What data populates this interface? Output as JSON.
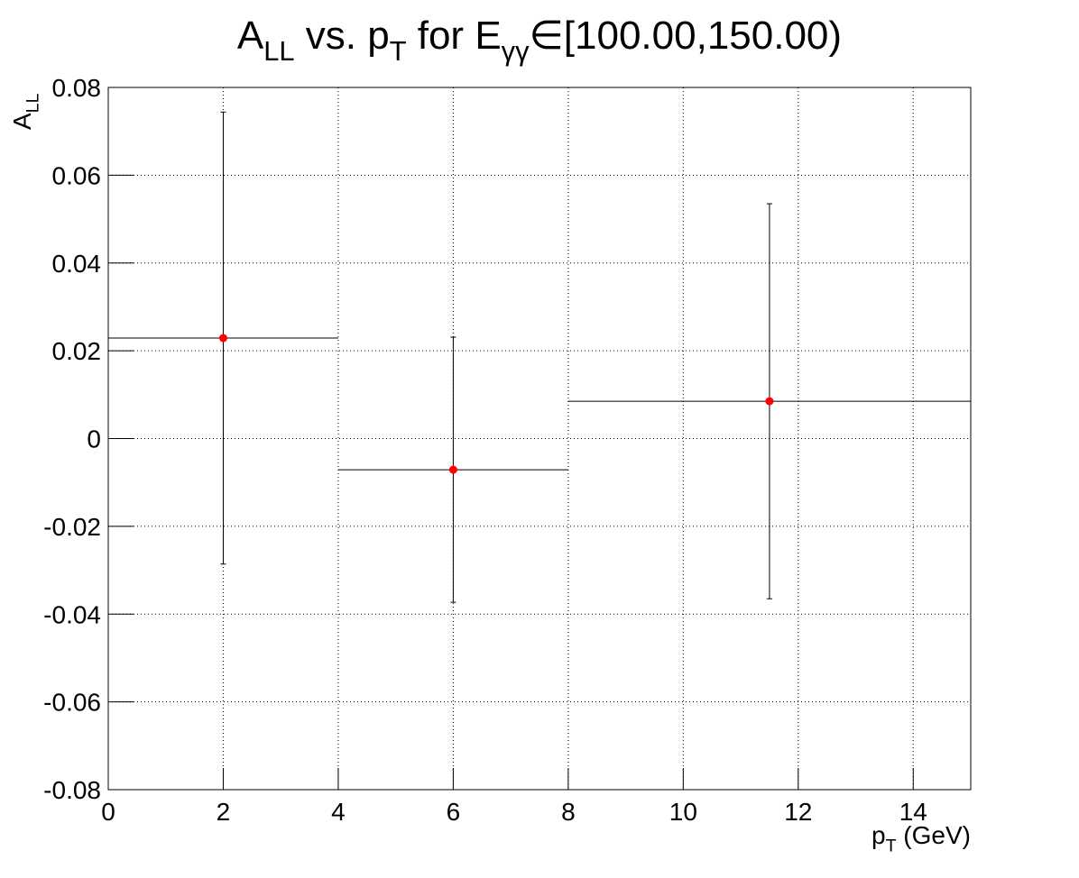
{
  "chart_data": {
    "type": "errorbar",
    "title": [
      "A",
      "LL",
      " vs. p",
      "T",
      " for E",
      "γγ",
      "∈[100.00,150.00)"
    ],
    "xlabel": [
      "p",
      "T",
      " (GeV)"
    ],
    "ylabel": [
      "A",
      "LL"
    ],
    "series": [
      {
        "color": "#ff0000",
        "x": [
          2,
          6,
          11.5
        ],
        "xerr": [
          2,
          2,
          3.5
        ],
        "values": [
          0.0229,
          -0.0071,
          0.0085
        ],
        "yerr": [
          0.0515,
          0.0302,
          0.045
        ]
      }
    ],
    "xlim": [
      0,
      15
    ],
    "ylim": [
      -0.08,
      0.08
    ],
    "xticks": [
      0,
      2,
      4,
      6,
      8,
      10,
      12,
      14
    ],
    "yticks": [
      -0.08,
      -0.06,
      -0.04,
      -0.02,
      0,
      0.02,
      0.04,
      0.06,
      0.08
    ],
    "grid": true
  }
}
